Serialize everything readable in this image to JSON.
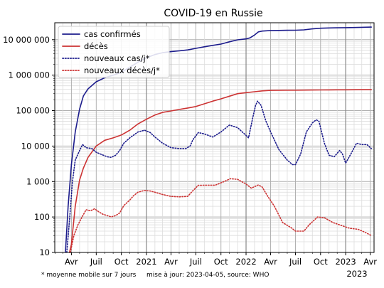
{
  "chart_data": {
    "type": "line",
    "title": "COVID-19 en Russie",
    "yscale": "log",
    "ylim": [
      10,
      30000000
    ],
    "y_ticks": [
      10,
      100,
      1000,
      10000,
      100000,
      1000000,
      10000000
    ],
    "y_tick_labels": [
      "10",
      "100",
      "1 000",
      "10 000",
      "100 000",
      "1 000 000",
      "10 000 000"
    ],
    "xlim": [
      "2020-01-31",
      "2023-04-15"
    ],
    "x_ticks": [
      "2020-04-01",
      "2020-07-01",
      "2020-10-01",
      "2021-01-01",
      "2021-04-01",
      "2021-07-01",
      "2021-10-01",
      "2022-01-01",
      "2022-04-01",
      "2022-07-01",
      "2022-10-01",
      "2023-01-01",
      "2023-04-01"
    ],
    "x_tick_labels": [
      "Avr",
      "Juil",
      "Oct",
      "2021",
      "Avr",
      "Juil",
      "Oct",
      "2022",
      "Avr",
      "Juil",
      "Oct",
      "2023",
      "Avr"
    ],
    "x_end_label": "2023",
    "grid": true,
    "legend_position": "top-left",
    "footnote": "* moyenne mobile sur 7 jours",
    "update_note": "mise à jour: 2023-04-05, source: WHO",
    "colors": {
      "cases": "#1c1c8c",
      "deaths": "#cc3333"
    },
    "series": [
      {
        "name": "cas confirmés",
        "style": "solid",
        "color": "#1c1c8c",
        "points": [
          [
            "2020-03-10",
            10
          ],
          [
            "2020-03-20",
            200
          ],
          [
            "2020-04-01",
            3000
          ],
          [
            "2020-04-15",
            25000
          ],
          [
            "2020-05-01",
            110000
          ],
          [
            "2020-05-15",
            260000
          ],
          [
            "2020-06-01",
            410000
          ],
          [
            "2020-07-01",
            650000
          ],
          [
            "2020-08-01",
            840000
          ],
          [
            "2020-09-01",
            1000000
          ],
          [
            "2020-10-01",
            1200000
          ],
          [
            "2020-11-01",
            1680000
          ],
          [
            "2020-12-01",
            2300000
          ],
          [
            "2021-01-01",
            3100000
          ],
          [
            "2021-02-01",
            3800000
          ],
          [
            "2021-03-01",
            4300000
          ],
          [
            "2021-04-01",
            4600000
          ],
          [
            "2021-05-01",
            4850000
          ],
          [
            "2021-06-01",
            5150000
          ],
          [
            "2021-07-01",
            5700000
          ],
          [
            "2021-08-01",
            6300000
          ],
          [
            "2021-09-01",
            6900000
          ],
          [
            "2021-10-01",
            7500000
          ],
          [
            "2021-11-01",
            8700000
          ],
          [
            "2021-12-01",
            9900000
          ],
          [
            "2022-01-01",
            10500000
          ],
          [
            "2022-01-15",
            11200000
          ],
          [
            "2022-02-01",
            13500000
          ],
          [
            "2022-02-15",
            16500000
          ],
          [
            "2022-03-01",
            17500000
          ],
          [
            "2022-04-01",
            18100000
          ],
          [
            "2022-05-01",
            18250000
          ],
          [
            "2022-06-01",
            18350000
          ],
          [
            "2022-07-01",
            18450000
          ],
          [
            "2022-08-01",
            18900000
          ],
          [
            "2022-09-01",
            20200000
          ],
          [
            "2022-10-01",
            21000000
          ],
          [
            "2022-11-01",
            21400000
          ],
          [
            "2022-12-01",
            21600000
          ],
          [
            "2023-01-01",
            21800000
          ],
          [
            "2023-02-01",
            22000000
          ],
          [
            "2023-03-01",
            22300000
          ],
          [
            "2023-04-05",
            22600000
          ]
        ]
      },
      {
        "name": "décès",
        "style": "solid",
        "color": "#cc3333",
        "points": [
          [
            "2020-03-25",
            1
          ],
          [
            "2020-04-01",
            17
          ],
          [
            "2020-04-15",
            200
          ],
          [
            "2020-05-01",
            1100
          ],
          [
            "2020-05-15",
            2400
          ],
          [
            "2020-06-01",
            4800
          ],
          [
            "2020-07-01",
            10000
          ],
          [
            "2020-08-01",
            14500
          ],
          [
            "2020-09-01",
            17000
          ],
          [
            "2020-10-01",
            20500
          ],
          [
            "2020-11-01",
            28000
          ],
          [
            "2020-12-01",
            42000
          ],
          [
            "2021-01-01",
            57000
          ],
          [
            "2021-02-01",
            75000
          ],
          [
            "2021-03-01",
            89000
          ],
          [
            "2021-04-01",
            98000
          ],
          [
            "2021-05-01",
            108000
          ],
          [
            "2021-06-01",
            118000
          ],
          [
            "2021-07-01",
            130000
          ],
          [
            "2021-08-01",
            155000
          ],
          [
            "2021-09-01",
            185000
          ],
          [
            "2021-10-01",
            215000
          ],
          [
            "2021-11-01",
            255000
          ],
          [
            "2021-12-01",
            300000
          ],
          [
            "2022-01-01",
            320000
          ],
          [
            "2022-02-01",
            340000
          ],
          [
            "2022-03-01",
            360000
          ],
          [
            "2022-04-01",
            372000
          ],
          [
            "2022-05-01",
            375000
          ],
          [
            "2022-06-01",
            376000
          ],
          [
            "2022-07-01",
            377000
          ],
          [
            "2022-08-01",
            378000
          ],
          [
            "2022-09-01",
            380000
          ],
          [
            "2022-10-01",
            382000
          ],
          [
            "2022-11-01",
            384000
          ],
          [
            "2022-12-01",
            385000
          ],
          [
            "2023-01-01",
            386000
          ],
          [
            "2023-02-01",
            387500
          ],
          [
            "2023-03-01",
            388500
          ],
          [
            "2023-04-05",
            389500
          ]
        ]
      },
      {
        "name": "nouveaux cas/j*",
        "style": "dotted",
        "color": "#1c1c8c",
        "points": [
          [
            "2020-03-15",
            10
          ],
          [
            "2020-03-25",
            80
          ],
          [
            "2020-04-05",
            1000
          ],
          [
            "2020-04-15",
            4000
          ],
          [
            "2020-05-01",
            7500
          ],
          [
            "2020-05-12",
            11000
          ],
          [
            "2020-05-25",
            9000
          ],
          [
            "2020-06-15",
            8500
          ],
          [
            "2020-07-01",
            6700
          ],
          [
            "2020-07-20",
            5800
          ],
          [
            "2020-08-10",
            5000
          ],
          [
            "2020-08-25",
            4800
          ],
          [
            "2020-09-10",
            5500
          ],
          [
            "2020-09-25",
            7500
          ],
          [
            "2020-10-10",
            12000
          ],
          [
            "2020-11-01",
            17000
          ],
          [
            "2020-12-01",
            25000
          ],
          [
            "2020-12-25",
            28000
          ],
          [
            "2021-01-15",
            24000
          ],
          [
            "2021-02-01",
            18000
          ],
          [
            "2021-03-01",
            12000
          ],
          [
            "2021-04-01",
            9000
          ],
          [
            "2021-05-01",
            8500
          ],
          [
            "2021-05-25",
            8500
          ],
          [
            "2021-06-10",
            10000
          ],
          [
            "2021-06-20",
            15000
          ],
          [
            "2021-07-10",
            24000
          ],
          [
            "2021-08-01",
            22000
          ],
          [
            "2021-09-01",
            18000
          ],
          [
            "2021-10-01",
            25000
          ],
          [
            "2021-11-01",
            39000
          ],
          [
            "2021-12-01",
            33000
          ],
          [
            "2022-01-01",
            20000
          ],
          [
            "2022-01-10",
            17000
          ],
          [
            "2022-01-25",
            60000
          ],
          [
            "2022-02-05",
            140000
          ],
          [
            "2022-02-12",
            185000
          ],
          [
            "2022-02-25",
            140000
          ],
          [
            "2022-03-15",
            50000
          ],
          [
            "2022-04-01",
            25000
          ],
          [
            "2022-05-01",
            8000
          ],
          [
            "2022-06-01",
            4000
          ],
          [
            "2022-06-20",
            3000
          ],
          [
            "2022-07-01",
            3000
          ],
          [
            "2022-07-20",
            6000
          ],
          [
            "2022-08-10",
            25000
          ],
          [
            "2022-09-01",
            45000
          ],
          [
            "2022-09-15",
            55000
          ],
          [
            "2022-09-25",
            50000
          ],
          [
            "2022-10-15",
            12000
          ],
          [
            "2022-11-01",
            5500
          ],
          [
            "2022-11-20",
            5000
          ],
          [
            "2022-12-10",
            7500
          ],
          [
            "2022-12-20",
            6000
          ],
          [
            "2023-01-01",
            3300
          ],
          [
            "2023-01-20",
            6000
          ],
          [
            "2023-02-10",
            12000
          ],
          [
            "2023-03-01",
            11000
          ],
          [
            "2023-03-20",
            11000
          ],
          [
            "2023-04-05",
            8500
          ]
        ]
      },
      {
        "name": "nouveaux décès/j*",
        "style": "dotted",
        "color": "#cc3333",
        "points": [
          [
            "2020-03-28",
            10
          ],
          [
            "2020-04-10",
            30
          ],
          [
            "2020-04-25",
            60
          ],
          [
            "2020-05-10",
            100
          ],
          [
            "2020-05-25",
            160
          ],
          [
            "2020-06-10",
            150
          ],
          [
            "2020-06-25",
            170
          ],
          [
            "2020-07-10",
            140
          ],
          [
            "2020-07-25",
            120
          ],
          [
            "2020-08-10",
            110
          ],
          [
            "2020-08-25",
            100
          ],
          [
            "2020-09-10",
            110
          ],
          [
            "2020-09-25",
            130
          ],
          [
            "2020-10-10",
            210
          ],
          [
            "2020-11-01",
            300
          ],
          [
            "2020-11-15",
            400
          ],
          [
            "2020-12-01",
            500
          ],
          [
            "2020-12-25",
            560
          ],
          [
            "2021-01-15",
            540
          ],
          [
            "2021-02-01",
            500
          ],
          [
            "2021-03-01",
            430
          ],
          [
            "2021-04-01",
            380
          ],
          [
            "2021-05-01",
            370
          ],
          [
            "2021-06-01",
            380
          ],
          [
            "2021-06-20",
            550
          ],
          [
            "2021-07-10",
            780
          ],
          [
            "2021-08-10",
            790
          ],
          [
            "2021-09-10",
            790
          ],
          [
            "2021-10-10",
            980
          ],
          [
            "2021-11-05",
            1200
          ],
          [
            "2021-12-01",
            1150
          ],
          [
            "2022-01-01",
            850
          ],
          [
            "2022-01-20",
            650
          ],
          [
            "2022-02-15",
            800
          ],
          [
            "2022-03-01",
            700
          ],
          [
            "2022-03-20",
            400
          ],
          [
            "2022-04-15",
            200
          ],
          [
            "2022-05-15",
            70
          ],
          [
            "2022-06-15",
            50
          ],
          [
            "2022-07-01",
            40
          ],
          [
            "2022-08-01",
            40
          ],
          [
            "2022-08-20",
            60
          ],
          [
            "2022-09-20",
            100
          ],
          [
            "2022-10-15",
            95
          ],
          [
            "2022-11-15",
            70
          ],
          [
            "2022-12-15",
            58
          ],
          [
            "2023-01-15",
            48
          ],
          [
            "2023-02-15",
            45
          ],
          [
            "2023-03-10",
            38
          ],
          [
            "2023-04-05",
            30
          ]
        ]
      }
    ]
  }
}
